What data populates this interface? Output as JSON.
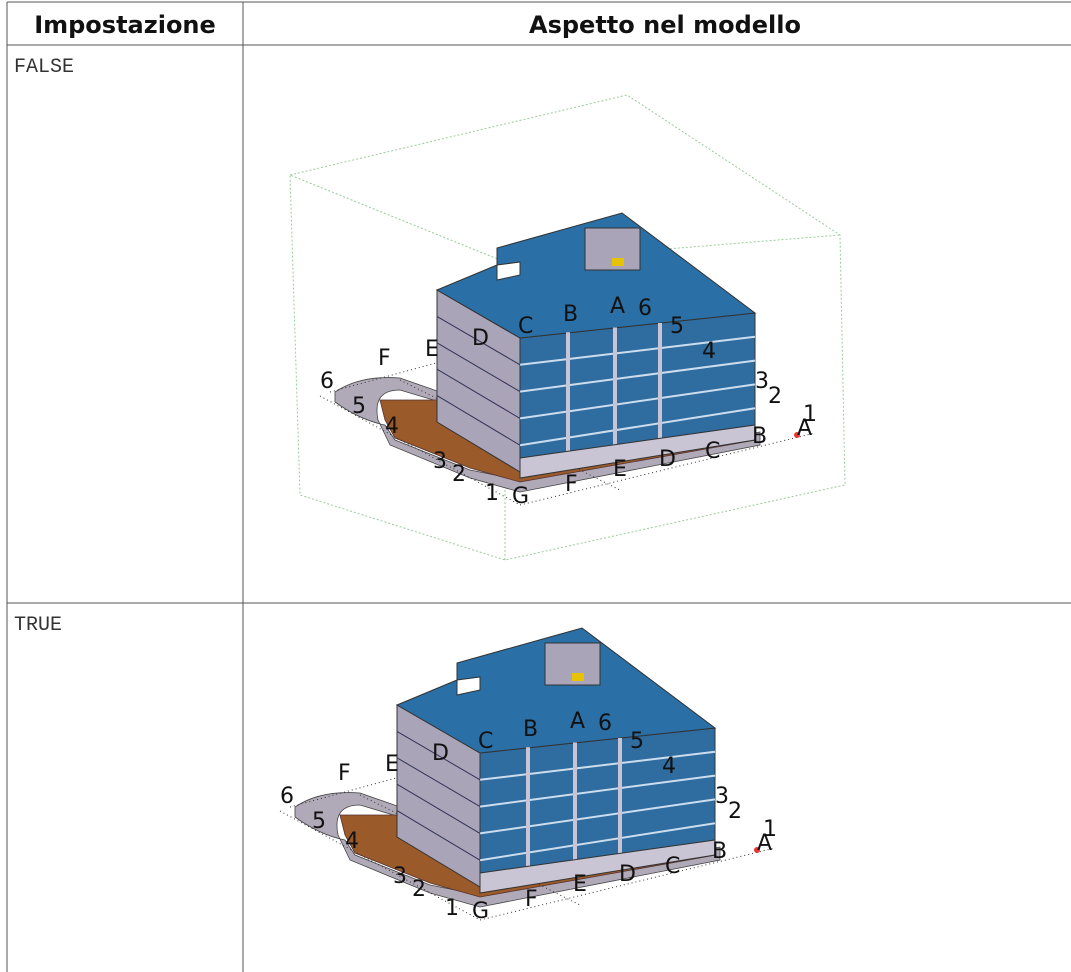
{
  "table": {
    "header": [
      "Impostazione",
      "Aspetto nel modello"
    ],
    "rows": [
      {
        "setting": "FALSE",
        "labels": [
          "6",
          "F",
          "E",
          "D",
          "C",
          "B",
          "A",
          "6",
          "5",
          "4",
          "3",
          "2",
          "1",
          "A",
          "B",
          "C",
          "D",
          "E",
          "F",
          "G",
          "1",
          "2",
          "3",
          "4",
          "5"
        ]
      },
      {
        "setting": "TRUE",
        "labels": [
          "6",
          "F",
          "E",
          "D",
          "C",
          "B",
          "A",
          "6",
          "5",
          "4",
          "3",
          "2",
          "1",
          "A",
          "B",
          "C",
          "D",
          "E",
          "F",
          "G",
          "1",
          "2",
          "3",
          "4",
          "5"
        ]
      }
    ]
  }
}
